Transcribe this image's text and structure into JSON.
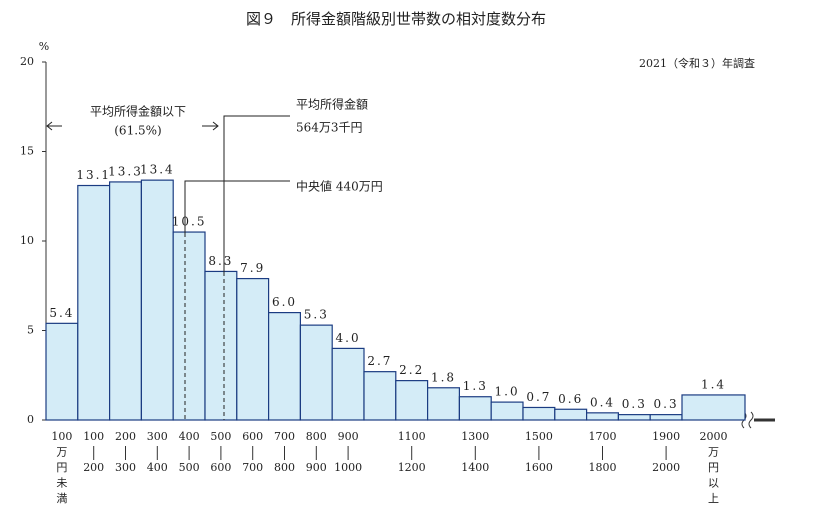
{
  "chart_data": {
    "type": "bar",
    "title": "図９　所得金額階級別世帯数の相対度数分布",
    "subtitle": "2021（令和３）年調査",
    "y_unit": "%",
    "categories": [
      [
        "100",
        "万",
        "円",
        "未",
        "満"
      ],
      [
        "100",
        "200"
      ],
      [
        "200",
        "300"
      ],
      [
        "300",
        "400"
      ],
      [
        "400",
        "500"
      ],
      [
        "500",
        "600"
      ],
      [
        "600",
        "700"
      ],
      [
        "700",
        "800"
      ],
      [
        "800",
        "900"
      ],
      [
        "900",
        "1000"
      ],
      null,
      [
        "1100",
        "1200"
      ],
      null,
      [
        "1300",
        "1400"
      ],
      null,
      [
        "1500",
        "1600"
      ],
      null,
      [
        "1700",
        "1800"
      ],
      null,
      [
        "1900",
        "2000"
      ],
      [
        "2000",
        "万",
        "円",
        "以",
        "上"
      ]
    ],
    "values": [
      5.4,
      13.1,
      13.3,
      13.4,
      10.5,
      8.3,
      7.9,
      6.0,
      5.3,
      4.0,
      2.7,
      2.2,
      1.8,
      1.3,
      1.0,
      0.7,
      0.6,
      0.4,
      0.3,
      0.3,
      1.4
    ],
    "value_labels": [
      "5.4",
      "13.1",
      "13.3",
      "13.4",
      "10.5",
      "8.3",
      "7.9",
      "6.0",
      "5.3",
      "4.0",
      "2.7",
      "2.2",
      "1.8",
      "1.3",
      "1.0",
      "0.7",
      "0.6",
      "0.4",
      "0.3",
      "0.3",
      "1.4"
    ],
    "ylim": [
      0,
      20
    ],
    "yticks": [
      0,
      5,
      10,
      15,
      20
    ],
    "color": "#d4ecf7",
    "edge_color": "#1b3c82",
    "annotations": {
      "below_mean": "平均所得金額以下",
      "below_mean_share": "(61.5%)",
      "mean_label": "平均所得金額",
      "mean_value": "564万3千円",
      "median": "中央値 440万円"
    }
  }
}
